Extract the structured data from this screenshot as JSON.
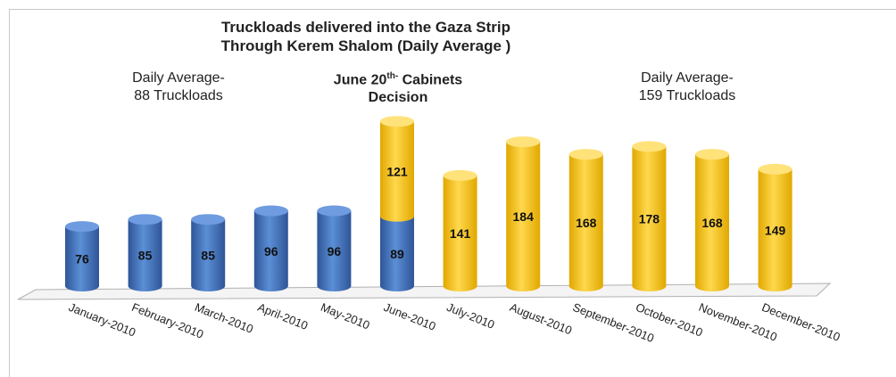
{
  "chart_data": {
    "type": "bar",
    "title_line1": "Truckloads delivered into the Gaza Strip",
    "title_line2": "Through Kerem Shalom (Daily Average )",
    "categories": [
      "January-2010",
      "February-2010",
      "March-2010",
      "April-2010",
      "May-2010",
      "June-2010",
      "July-2010",
      "August-2010",
      "September-2010",
      "October-2010",
      "November-2010",
      "December-2010"
    ],
    "series": [
      {
        "values": [
          76,
          85,
          85,
          96,
          96,
          89,
          null,
          null,
          null,
          null,
          null,
          null
        ],
        "color": "#4472c4"
      },
      {
        "values": [
          null,
          null,
          null,
          null,
          null,
          121,
          141,
          184,
          168,
          178,
          168,
          149
        ],
        "color": "#ffc000"
      }
    ],
    "data_labels": [
      "76",
      "85",
      "85",
      "96",
      "96",
      "89",
      "121",
      "141",
      "184",
      "168",
      "178",
      "168",
      "149"
    ],
    "stacked": true,
    "ylim": [
      0,
      215
    ],
    "grid": false,
    "annotations": {
      "left_line1": "Daily Average-",
      "left_line2": "88 Truckloads",
      "mid_line1_a": "June 20",
      "mid_line1_sup": "th-",
      "mid_line1_b": " Cabinets",
      "mid_line2": "Decision",
      "right_line1": "Daily Average-",
      "right_line2": "159 Truckloads"
    }
  }
}
